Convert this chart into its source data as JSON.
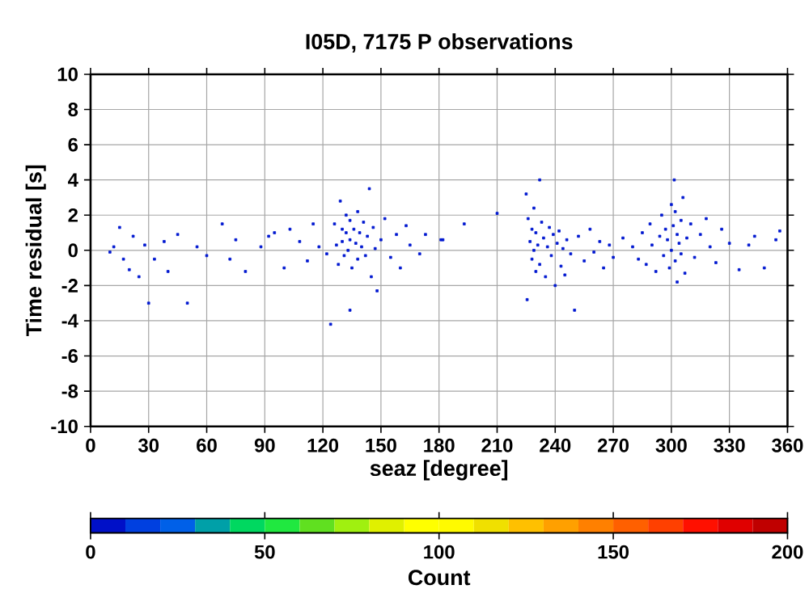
{
  "chart_data": {
    "type": "scatter",
    "title": "I05D, 7175 P observations",
    "xlabel": "seaz [degree]",
    "ylabel": "Time residual [s]",
    "clabel": "Count",
    "xlim": [
      0,
      360
    ],
    "xticks": [
      0,
      30,
      60,
      90,
      120,
      150,
      180,
      210,
      240,
      270,
      300,
      330,
      360
    ],
    "ylim": [
      -10,
      10
    ],
    "yticks": [
      -10,
      -8,
      -6,
      -4,
      -2,
      0,
      2,
      4,
      6,
      8,
      10
    ],
    "clim": [
      0,
      200
    ],
    "cticks": [
      0,
      50,
      100,
      150,
      200
    ],
    "grid": true,
    "marker": "square",
    "color": "#0018d0",
    "x": [
      10,
      12,
      15,
      17,
      20,
      22,
      25,
      28,
      30,
      33,
      38,
      40,
      45,
      50,
      55,
      60,
      68,
      72,
      75,
      80,
      88,
      92,
      95,
      100,
      103,
      108,
      112,
      115,
      118,
      122,
      124,
      126,
      127,
      128,
      129,
      130,
      130,
      131,
      132,
      132,
      133,
      134,
      134,
      135,
      136,
      137,
      138,
      138,
      139,
      140,
      141,
      142,
      143,
      144,
      145,
      146,
      147,
      148,
      134,
      150,
      152,
      155,
      158,
      160,
      163,
      165,
      170,
      173,
      181,
      182,
      193,
      210,
      225,
      225.5,
      226,
      227,
      228,
      228,
      229,
      229,
      230,
      230,
      231,
      232,
      232,
      233,
      234,
      235,
      236,
      237,
      238,
      239,
      240,
      241,
      242,
      243,
      244,
      245,
      246,
      248,
      250,
      252,
      255,
      258,
      260,
      263,
      265,
      268,
      270,
      275,
      280,
      283,
      285,
      287,
      289,
      290,
      292,
      294,
      295,
      296,
      297,
      298,
      299,
      300,
      300,
      301,
      301.5,
      302,
      302,
      303,
      303,
      304,
      305,
      305,
      306,
      307,
      308,
      310,
      312,
      315,
      318,
      320,
      323,
      326,
      330,
      335,
      340,
      343,
      348,
      354,
      356
    ],
    "values": [
      -0.1,
      0.2,
      1.3,
      -0.5,
      -1.1,
      0.8,
      -1.5,
      0.3,
      -3.0,
      -0.5,
      0.5,
      -1.2,
      0.9,
      -3.0,
      0.2,
      -0.3,
      1.5,
      -0.5,
      0.6,
      -1.2,
      0.2,
      0.8,
      1.0,
      -1.0,
      1.2,
      0.5,
      -0.6,
      1.5,
      0.2,
      -0.2,
      -4.2,
      1.5,
      0.3,
      -0.8,
      2.8,
      1.2,
      0.5,
      -0.3,
      2.0,
      1.0,
      0.0,
      1.7,
      0.6,
      -1.0,
      1.2,
      0.4,
      2.2,
      -0.5,
      1.0,
      0.2,
      1.6,
      -0.3,
      0.8,
      3.5,
      -1.5,
      1.3,
      0.1,
      -2.3,
      -3.4,
      0.6,
      1.8,
      -0.4,
      0.9,
      -1.0,
      1.4,
      0.3,
      -0.2,
      0.9,
      0.6,
      0.6,
      1.5,
      2.1,
      3.2,
      -2.8,
      1.8,
      0.5,
      -0.5,
      1.2,
      2.4,
      0.0,
      -1.2,
      1.0,
      0.3,
      4.0,
      -0.8,
      1.6,
      0.7,
      -1.5,
      0.2,
      1.3,
      -0.3,
      0.9,
      -2.0,
      0.4,
      1.1,
      -0.9,
      0.1,
      -1.4,
      0.6,
      -0.2,
      -3.4,
      0.8,
      -0.6,
      1.2,
      -0.1,
      0.5,
      -1.0,
      0.3,
      -0.4,
      0.7,
      0.2,
      -0.5,
      1.0,
      -0.8,
      1.5,
      0.3,
      -1.2,
      0.8,
      2.0,
      -0.3,
      1.2,
      0.6,
      -1.0,
      2.6,
      0.0,
      1.4,
      4.0,
      -0.6,
      2.2,
      0.9,
      -1.8,
      0.4,
      1.7,
      -0.2,
      3.0,
      -1.3,
      0.7,
      1.5,
      -0.4,
      0.9,
      1.8,
      0.2,
      -0.7,
      1.2,
      0.4,
      -1.1,
      0.3,
      0.8,
      -1.0,
      0.6,
      1.1
    ]
  }
}
